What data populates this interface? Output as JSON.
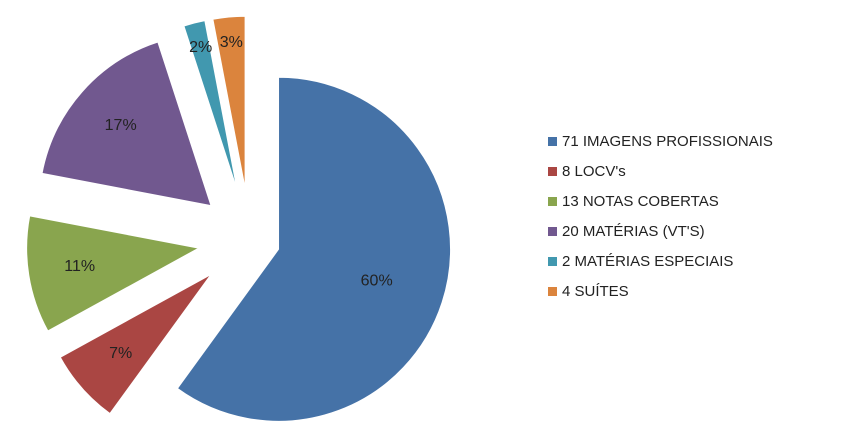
{
  "chart_data": {
    "type": "pie",
    "categories": [
      "71 IMAGENS PROFISSIONAIS",
      "8 LOCV's",
      "13 NOTAS COBERTAS",
      "20 MATÉRIAS (VT'S)",
      "2 MATÉRIAS ESPECIAIS",
      "4 SUÍTES"
    ],
    "values": [
      60,
      7,
      11,
      17,
      2,
      3
    ],
    "value_labels": [
      "60%",
      "7%",
      "11%",
      "17%",
      "2%",
      "3%"
    ],
    "colors": [
      "#4572a7",
      "#aa4643",
      "#89a54e",
      "#71588f",
      "#4198af",
      "#db843d"
    ],
    "legend": "right"
  }
}
